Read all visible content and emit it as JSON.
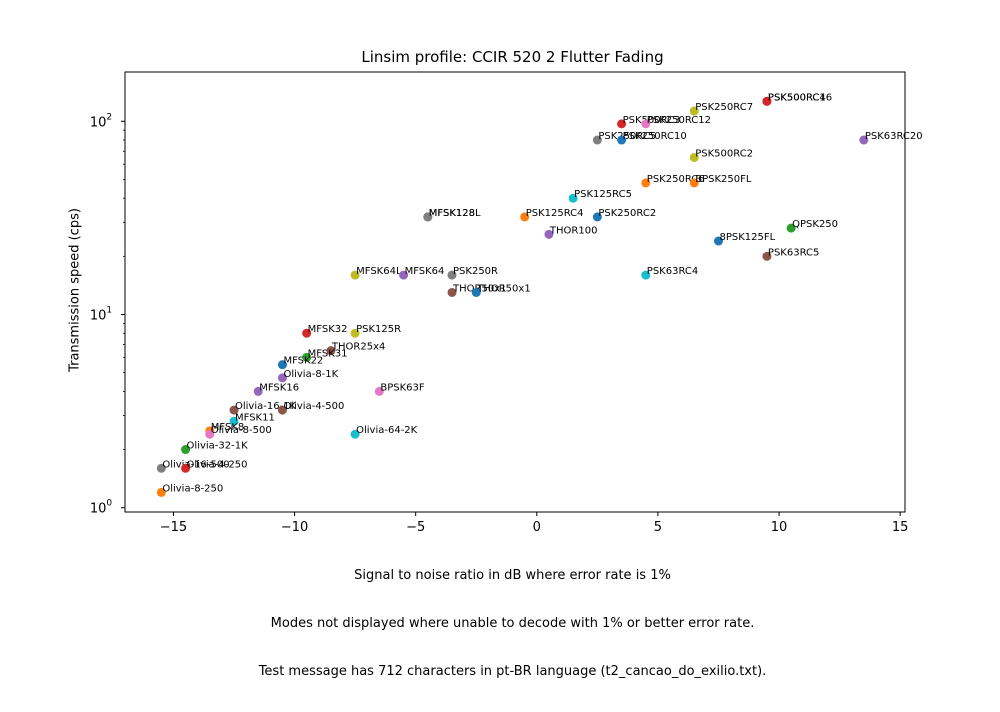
{
  "chart_data": {
    "type": "scatter",
    "title": "Linsim profile: CCIR 520 2 Flutter Fading",
    "xlabel_lines": [
      "Signal to noise ratio in dB where error rate is 1%",
      "Modes not displayed where unable to decode with 1% or better error rate.",
      "Test message has 712 characters in pt-BR language (t2_cancao_do_exilio.txt)."
    ],
    "ylabel": "Transmission speed (cps)",
    "xlim": [
      -17,
      15.2
    ],
    "ylim": [
      0.95,
      180
    ],
    "yscale": "log",
    "xticks": [
      -15,
      -10,
      -5,
      0,
      5,
      10,
      15
    ],
    "xtick_labels": [
      "−15",
      "−10",
      "−5",
      "0",
      "5",
      "10",
      "15"
    ],
    "yticks": [
      1,
      10,
      100
    ],
    "ytick_labels": [
      {
        "base": "10",
        "exp": "0"
      },
      {
        "base": "10",
        "exp": "1"
      },
      {
        "base": "10",
        "exp": "2"
      }
    ],
    "grid": false,
    "points": [
      {
        "label": "PSK500RC16",
        "x": 9.5,
        "y": 127,
        "color": "#d62728"
      },
      {
        "label": "PSK500RC4",
        "x": 9.5,
        "y": 127,
        "color": "#d62728"
      },
      {
        "label": "PSK250RC7",
        "x": 6.5,
        "y": 113,
        "color": "#bcbd22"
      },
      {
        "label": "PSK500RC3",
        "x": 3.5,
        "y": 97,
        "color": "#d62728"
      },
      {
        "label": "PSK250RC12",
        "x": 4.5,
        "y": 97,
        "color": "#e377c2"
      },
      {
        "label": "PSK250RC5",
        "x": 2.5,
        "y": 80,
        "color": "#7f7f7f"
      },
      {
        "label": "PSK250RC10",
        "x": 3.5,
        "y": 80,
        "color": "#1f77b4"
      },
      {
        "label": "PSK63RC20",
        "x": 13.5,
        "y": 80,
        "color": "#9467bd"
      },
      {
        "label": "PSK500RC2",
        "x": 6.5,
        "y": 65,
        "color": "#bcbd22"
      },
      {
        "label": "PSK250RC6",
        "x": 4.5,
        "y": 48,
        "color": "#ff7f0e"
      },
      {
        "label": "BPSK250FL",
        "x": 6.5,
        "y": 48,
        "color": "#ff7f0e"
      },
      {
        "label": "PSK125RC5",
        "x": 1.5,
        "y": 40,
        "color": "#17becf"
      },
      {
        "label": "MFSK128",
        "x": -4.5,
        "y": 32,
        "color": "#7f7f7f"
      },
      {
        "label": "MFSK128L",
        "x": -4.5,
        "y": 32,
        "color": "#7f7f7f"
      },
      {
        "label": "PSK125RC4",
        "x": -0.5,
        "y": 32,
        "color": "#ff7f0e"
      },
      {
        "label": "PSK250RC2",
        "x": 2.5,
        "y": 32,
        "color": "#1f77b4"
      },
      {
        "label": "QPSK250",
        "x": 10.5,
        "y": 28,
        "color": "#2ca02c"
      },
      {
        "label": "THOR100",
        "x": 0.5,
        "y": 26,
        "color": "#9467bd"
      },
      {
        "label": "8PSK125FL",
        "x": 7.5,
        "y": 24,
        "color": "#1f77b4"
      },
      {
        "label": "PSK63RC5",
        "x": 9.5,
        "y": 20,
        "color": "#8c564b"
      },
      {
        "label": "MFSK64L",
        "x": -7.5,
        "y": 16,
        "color": "#bcbd22"
      },
      {
        "label": "MFSK64",
        "x": -5.5,
        "y": 16,
        "color": "#9467bd"
      },
      {
        "label": "PSK250R",
        "x": -3.5,
        "y": 16,
        "color": "#7f7f7f"
      },
      {
        "label": "PSK63RC4",
        "x": 4.5,
        "y": 16,
        "color": "#17becf"
      },
      {
        "label": "THOR50x1",
        "x": -3.5,
        "y": 13,
        "color": "#8c564b"
      },
      {
        "label": "THOR50x1",
        "x": -2.5,
        "y": 13,
        "color": "#1f77b4"
      },
      {
        "label": "MFSK32",
        "x": -9.5,
        "y": 8,
        "color": "#d62728"
      },
      {
        "label": "PSK125R",
        "x": -7.5,
        "y": 8,
        "color": "#bcbd22"
      },
      {
        "label": "THOR25x4",
        "x": -8.5,
        "y": 6.5,
        "color": "#8c564b"
      },
      {
        "label": "MFSK31",
        "x": -9.5,
        "y": 6,
        "color": "#2ca02c"
      },
      {
        "label": "MFSK22",
        "x": -10.5,
        "y": 5.5,
        "color": "#1f77b4"
      },
      {
        "label": "Olivia-8-1K",
        "x": -10.5,
        "y": 4.7,
        "color": "#9467bd"
      },
      {
        "label": "MFSK16",
        "x": -11.5,
        "y": 4.0,
        "color": "#9467bd"
      },
      {
        "label": "BPSK63F",
        "x": -6.5,
        "y": 4.0,
        "color": "#e377c2"
      },
      {
        "label": "Olivia-16-1K",
        "x": -12.5,
        "y": 3.2,
        "color": "#8c564b"
      },
      {
        "label": "Olivia-4-500",
        "x": -10.5,
        "y": 3.2,
        "color": "#8c564b"
      },
      {
        "label": "MFSK11",
        "x": -12.5,
        "y": 2.8,
        "color": "#17becf"
      },
      {
        "label": "MFSK8",
        "x": -13.5,
        "y": 2.5,
        "color": "#ff7f0e"
      },
      {
        "label": "Olivia-8-500",
        "x": -13.5,
        "y": 2.4,
        "color": "#e377c2"
      },
      {
        "label": "Olivia-64-2K",
        "x": -7.5,
        "y": 2.4,
        "color": "#17becf"
      },
      {
        "label": "Olivia-32-1K",
        "x": -14.5,
        "y": 2.0,
        "color": "#2ca02c"
      },
      {
        "label": "Olivia-16-500",
        "x": -15.5,
        "y": 1.6,
        "color": "#7f7f7f"
      },
      {
        "label": "Olivia-4-250",
        "x": -14.5,
        "y": 1.6,
        "color": "#d62728"
      },
      {
        "label": "Olivia-8-250",
        "x": -15.5,
        "y": 1.2,
        "color": "#ff7f0e"
      }
    ]
  }
}
